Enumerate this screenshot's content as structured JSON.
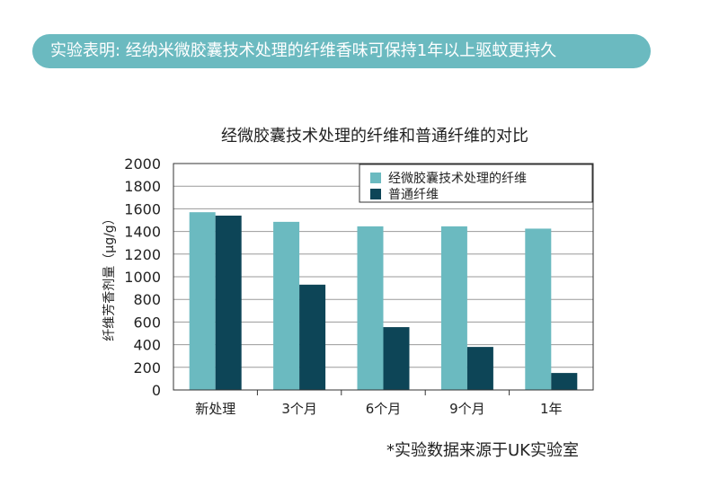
{
  "banner": {
    "text": "实验表明: 经纳米微胶囊技术处理的纤维香味可保持1年以上驱蚊更持久"
  },
  "footnote": "*实验数据来源于UK实验室",
  "colors": {
    "banner": "#6bbac0",
    "treated": "#6bbac0",
    "ordinary": "#0d4557"
  },
  "chart_data": {
    "type": "bar",
    "title": "经微胶囊技术处理的纤维和普通纤维的对比",
    "xlabel": "",
    "ylabel": "纤维芳香剂量（μg/g）",
    "categories": [
      "新处理",
      "3个月",
      "6个月",
      "9个月",
      "1年"
    ],
    "series": [
      {
        "name": "经微胶囊技术处理的纤维",
        "color": "#6bbac0",
        "values": [
          1570,
          1485,
          1445,
          1445,
          1425
        ]
      },
      {
        "name": "普通纤维",
        "color": "#0d4557",
        "values": [
          1540,
          930,
          555,
          380,
          150
        ]
      }
    ],
    "ylim": [
      0,
      2000
    ],
    "yticks": [
      0,
      200,
      400,
      600,
      800,
      1000,
      1200,
      1400,
      1600,
      1800,
      2000
    ],
    "grid": true,
    "legend": "top-right"
  }
}
